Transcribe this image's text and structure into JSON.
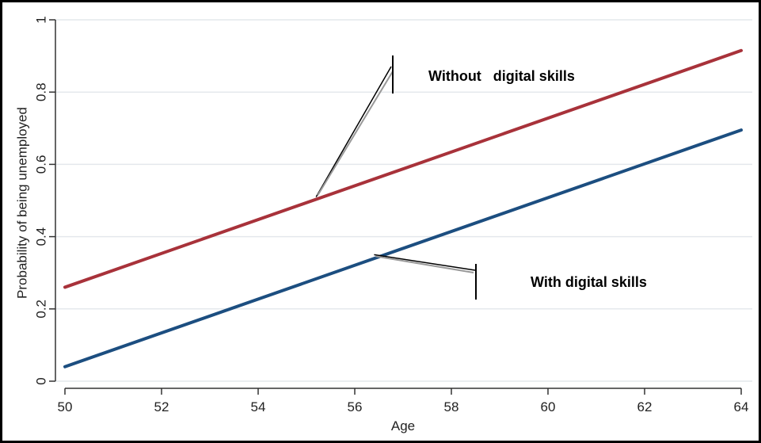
{
  "chart_data": {
    "type": "line",
    "xlabel": "Age",
    "ylabel": "Probability of being unemployed",
    "xlim": [
      50,
      64
    ],
    "ylim": [
      0,
      1
    ],
    "x_ticks": [
      "50",
      "52",
      "54",
      "56",
      "58",
      "60",
      "62",
      "64"
    ],
    "y_ticks": [
      "0",
      "0.2",
      "0.4",
      "0.6",
      "0.8",
      "1"
    ],
    "grid": true,
    "series": [
      {
        "x": [
          50,
          64
        ],
        "y": [
          0.26,
          0.915
        ],
        "color": "#a8323a"
      },
      {
        "x": [
          50,
          64
        ],
        "y": [
          0.04,
          0.695
        ],
        "color": "#1c4e80"
      }
    ],
    "annotations": [
      {
        "text": "Without   digital skills",
        "points_to": {
          "x": 55.2,
          "y": 0.51
        }
      },
      {
        "text": "With digital skills",
        "points_to": {
          "x": 56.4,
          "y": 0.35
        }
      }
    ]
  }
}
